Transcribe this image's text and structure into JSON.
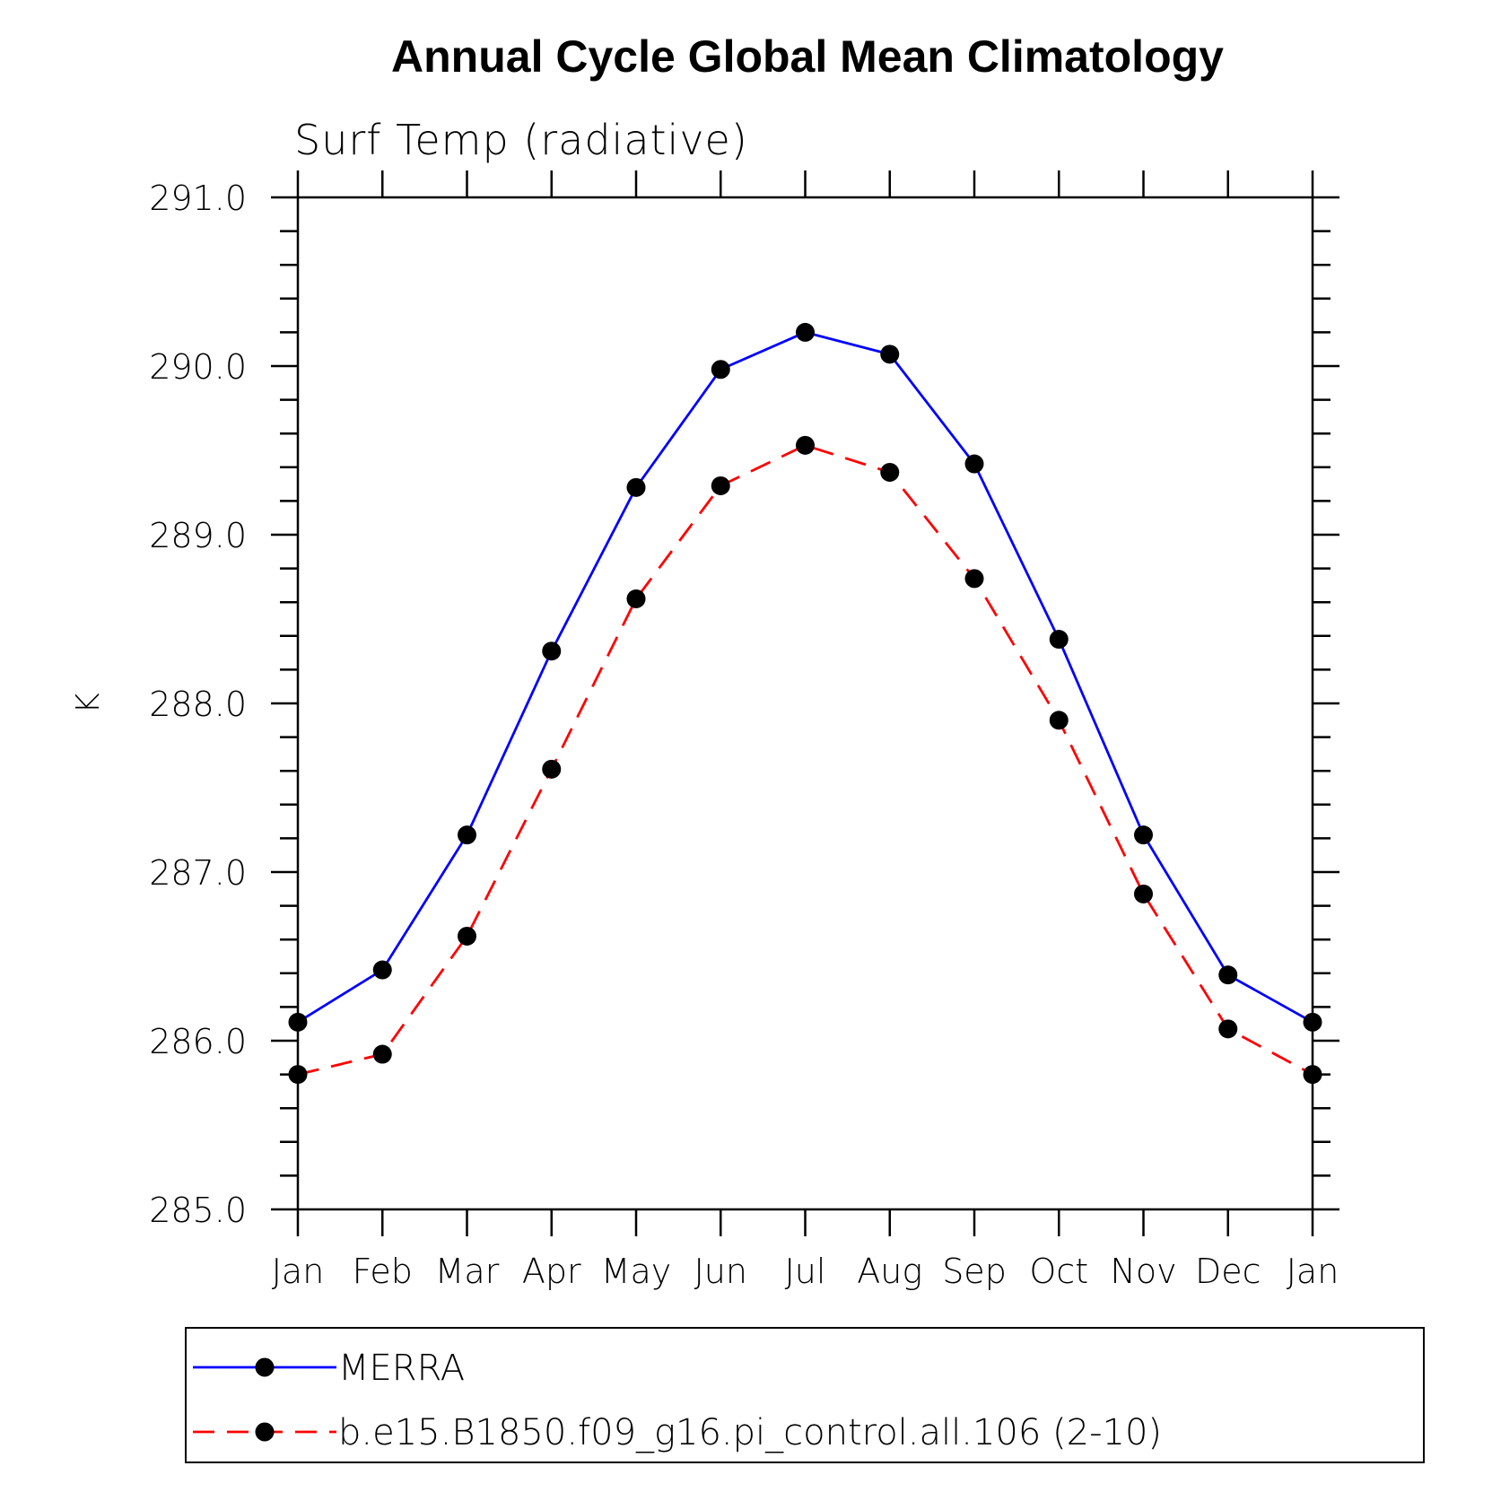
{
  "chart_data": {
    "type": "line",
    "title": "Annual Cycle Global Mean Climatology",
    "subtitle": "Surf Temp (radiative)",
    "ylabel": "K",
    "xlabel": "",
    "categories": [
      "Jan",
      "Feb",
      "Mar",
      "Apr",
      "May",
      "Jun",
      "Jul",
      "Aug",
      "Sep",
      "Oct",
      "Nov",
      "Dec",
      "Jan"
    ],
    "ylim": [
      285.0,
      291.0
    ],
    "yticks": [
      "285.0",
      "286.0",
      "287.0",
      "288.0",
      "289.0",
      "290.0",
      "291.0"
    ],
    "y_minor_step": 0.2,
    "grid": false,
    "legend_position": "bottom",
    "series": [
      {
        "name": "MERRA",
        "color": "#0000ff",
        "dash": "solid",
        "marker": "filled-circle",
        "values": [
          286.11,
          286.42,
          287.22,
          288.31,
          289.28,
          289.98,
          290.2,
          290.07,
          289.42,
          288.38,
          287.22,
          286.39,
          286.11
        ]
      },
      {
        "name": "b.e15.B1850.f09_g16.pi_control.all.106 (2-10)",
        "color": "#ff0000",
        "dash": "dashed",
        "marker": "filled-circle",
        "values": [
          285.8,
          285.92,
          286.62,
          287.61,
          288.62,
          289.29,
          289.53,
          289.37,
          288.74,
          287.9,
          286.87,
          286.07,
          285.8
        ]
      }
    ]
  }
}
